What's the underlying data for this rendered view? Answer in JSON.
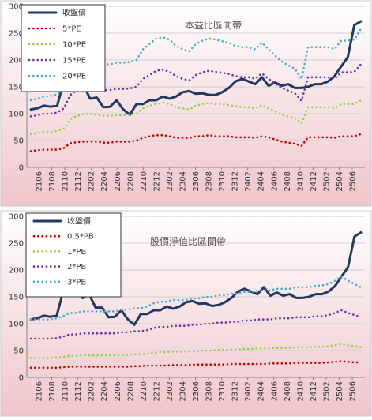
{
  "chart_data": [
    {
      "type": "line",
      "title": "本益比區間帶",
      "ylim": [
        0,
        300
      ],
      "yticks": [
        0,
        50,
        100,
        150,
        200,
        250,
        300
      ],
      "x_tick_labels": [
        "2106",
        "2108",
        "2110",
        "2112",
        "2202",
        "2204",
        "2206",
        "2208",
        "2210",
        "2212",
        "2302",
        "2304",
        "2306",
        "2308",
        "2310",
        "2312",
        "2402",
        "2404",
        "2406",
        "2408",
        "2410",
        "2412",
        "2502",
        "2504",
        "2506"
      ],
      "legend_placement": "top-left",
      "grid": true,
      "colors": {
        "price": "#1F3864",
        "band1": "#C00000",
        "band2": "#92D050",
        "band3": "#7030A0",
        "band4": "#4BACC6"
      },
      "series": [
        {
          "name": "收盤價",
          "style": "solid",
          "values": [
            108,
            110,
            115,
            113,
            115,
            160,
            165,
            148,
            152,
            128,
            130,
            112,
            113,
            125,
            108,
            98,
            118,
            118,
            125,
            125,
            132,
            128,
            132,
            140,
            142,
            137,
            138,
            135,
            135,
            140,
            148,
            160,
            165,
            160,
            155,
            168,
            152,
            158,
            152,
            155,
            148,
            148,
            150,
            155,
            155,
            160,
            170,
            188,
            205,
            265,
            272
          ]
        },
        {
          "name": "5*PE",
          "style": "dotted",
          "values": [
            30,
            32,
            33,
            33,
            33,
            36,
            45,
            47,
            48,
            48,
            48,
            46,
            46,
            48,
            48,
            48,
            50,
            55,
            58,
            60,
            60,
            58,
            55,
            55,
            55,
            58,
            58,
            60,
            58,
            58,
            58,
            56,
            56,
            56,
            55,
            58,
            56,
            52,
            48,
            46,
            44,
            40,
            56,
            56,
            56,
            56,
            55,
            58,
            58,
            58,
            62
          ]
        },
        {
          "name": "10*PE",
          "style": "dotted",
          "values": [
            62,
            64,
            66,
            66,
            68,
            72,
            90,
            96,
            99,
            100,
            98,
            96,
            96,
            97,
            97,
            98,
            100,
            110,
            115,
            118,
            120,
            118,
            112,
            110,
            108,
            115,
            118,
            120,
            118,
            118,
            116,
            114,
            112,
            112,
            110,
            116,
            110,
            104,
            98,
            95,
            92,
            82,
            112,
            112,
            112,
            112,
            110,
            118,
            118,
            118,
            125
          ]
        },
        {
          "name": "15*PE",
          "style": "dotted",
          "values": [
            95,
            97,
            100,
            100,
            102,
            110,
            135,
            144,
            148,
            150,
            147,
            144,
            144,
            146,
            146,
            147,
            150,
            165,
            172,
            180,
            182,
            178,
            170,
            165,
            162,
            172,
            177,
            180,
            178,
            176,
            174,
            170,
            168,
            168,
            165,
            175,
            165,
            156,
            148,
            143,
            138,
            124,
            168,
            168,
            168,
            168,
            165,
            177,
            177,
            178,
            192
          ]
        },
        {
          "name": "20*PE",
          "style": "dotted",
          "values": [
            125,
            128,
            132,
            133,
            136,
            147,
            180,
            192,
            197,
            200,
            196,
            192,
            192,
            195,
            195,
            196,
            200,
            220,
            230,
            240,
            242,
            238,
            226,
            220,
            216,
            230,
            236,
            240,
            238,
            235,
            232,
            226,
            224,
            224,
            220,
            232,
            220,
            208,
            197,
            190,
            184,
            165,
            224,
            224,
            224,
            224,
            220,
            236,
            236,
            238,
            258
          ]
        }
      ]
    },
    {
      "type": "line",
      "title": "股價淨值比區間帶",
      "ylim": [
        0,
        300
      ],
      "yticks": [
        0,
        50,
        100,
        150,
        200,
        250,
        300
      ],
      "x_tick_labels": [
        "2106",
        "2108",
        "2110",
        "2112",
        "2202",
        "2204",
        "2206",
        "2208",
        "2210",
        "2212",
        "2302",
        "2304",
        "2306",
        "2308",
        "2310",
        "2312",
        "2402",
        "2404",
        "2406",
        "2408",
        "2410",
        "2412",
        "2502",
        "2504",
        "2506"
      ],
      "legend_placement": "top-left",
      "grid": true,
      "colors": {
        "price": "#1F3864",
        "band1": "#C00000",
        "band2": "#92D050",
        "band3": "#7030A0",
        "band4": "#4BACC6"
      },
      "series": [
        {
          "name": "收盤價",
          "style": "solid",
          "values": [
            108,
            110,
            115,
            113,
            115,
            160,
            180,
            162,
            148,
            155,
            130,
            130,
            112,
            113,
            125,
            108,
            98,
            118,
            118,
            125,
            125,
            132,
            128,
            132,
            140,
            142,
            137,
            138,
            133,
            135,
            140,
            148,
            160,
            165,
            160,
            155,
            168,
            152,
            158,
            152,
            155,
            148,
            148,
            150,
            155,
            155,
            160,
            170,
            188,
            205,
            262,
            270
          ]
        },
        {
          "name": "0.5*PB",
          "style": "dotted",
          "values": [
            18,
            18,
            18,
            18,
            18,
            19,
            20,
            20,
            20,
            20,
            20,
            20,
            20,
            20,
            20,
            20,
            21,
            21,
            22,
            22,
            22,
            22,
            23,
            23,
            23,
            24,
            24,
            24,
            24,
            24,
            24,
            25,
            25,
            25,
            25,
            25,
            25,
            26,
            26,
            26,
            26,
            27,
            27,
            27,
            27,
            27,
            28,
            29,
            30,
            29,
            28,
            28
          ]
        },
        {
          "name": "1*PB",
          "style": "dotted",
          "values": [
            36,
            36,
            36,
            36,
            37,
            38,
            40,
            40,
            41,
            41,
            41,
            41,
            41,
            41,
            42,
            42,
            43,
            43,
            44,
            46,
            47,
            47,
            48,
            48,
            48,
            49,
            49,
            50,
            50,
            51,
            51,
            52,
            52,
            53,
            53,
            54,
            54,
            54,
            55,
            55,
            55,
            56,
            56,
            56,
            57,
            57,
            58,
            60,
            62,
            60,
            58,
            56
          ]
        },
        {
          "name": "2*PB",
          "style": "dotted",
          "values": [
            72,
            72,
            72,
            72,
            73,
            76,
            80,
            80,
            82,
            82,
            82,
            82,
            82,
            82,
            84,
            84,
            86,
            86,
            88,
            92,
            94,
            94,
            96,
            96,
            96,
            98,
            98,
            100,
            100,
            102,
            102,
            104,
            104,
            106,
            106,
            108,
            108,
            108,
            110,
            110,
            110,
            112,
            112,
            112,
            114,
            114,
            116,
            120,
            125,
            120,
            116,
            112
          ]
        },
        {
          "name": "3*PB",
          "style": "dotted",
          "values": [
            108,
            108,
            108,
            108,
            110,
            114,
            120,
            120,
            123,
            123,
            123,
            123,
            123,
            123,
            126,
            126,
            129,
            129,
            132,
            138,
            141,
            141,
            144,
            144,
            144,
            147,
            147,
            150,
            150,
            153,
            153,
            156,
            156,
            159,
            159,
            162,
            162,
            162,
            165,
            165,
            165,
            168,
            168,
            168,
            171,
            171,
            174,
            180,
            188,
            180,
            174,
            168
          ]
        }
      ]
    }
  ]
}
